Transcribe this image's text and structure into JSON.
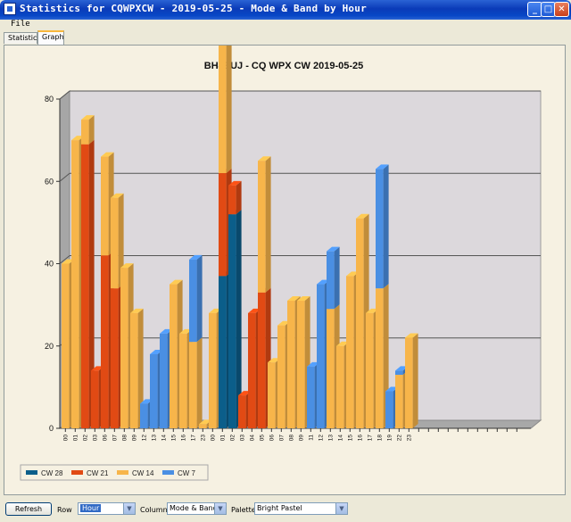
{
  "window": {
    "title": "Statistics for CQWPXCW - 2019-05-25 - Mode & Band by Hour"
  },
  "menu": {
    "file": "File"
  },
  "tabs": [
    {
      "label": "Statistics"
    },
    {
      "label": "Graph"
    }
  ],
  "controls": {
    "refresh_label": "Refresh",
    "row_label": "Row",
    "row_value": "Hour",
    "column_label": "Column",
    "column_value": "Mode & Band",
    "palette_label": "Palette",
    "palette_value": "Bright Pastel"
  },
  "colors": {
    "CW 28": "#0b5e8a",
    "CW 21": "#e14a14",
    "CW 14": "#f7b54a",
    "CW 7": "#4a8fe3"
  },
  "chart_data": {
    "type": "bar",
    "title": "BH4EUJ - CQ WPX  CW 2019-05-25",
    "categories": [
      "00",
      "01",
      "02",
      "03",
      "06",
      "07",
      "08",
      "09",
      "12",
      "13",
      "14",
      "15",
      "16",
      "17",
      "23",
      "00",
      "01",
      "02",
      "03",
      "04",
      "05",
      "06",
      "07",
      "08",
      "09",
      "11",
      "12",
      "13",
      "14",
      "15",
      "16",
      "17",
      "18",
      "19",
      "22",
      "23"
    ],
    "series": [
      {
        "name": "CW 28",
        "values": [
          0,
          0,
          0,
          0,
          0,
          0,
          0,
          0,
          0,
          0,
          0,
          0,
          0,
          0,
          0,
          0,
          37,
          52,
          0,
          0,
          0,
          0,
          0,
          0,
          0,
          0,
          0,
          0,
          0,
          0,
          0,
          0,
          0,
          0,
          0,
          0
        ]
      },
      {
        "name": "CW 21",
        "values": [
          0,
          0,
          69,
          14,
          42,
          34,
          0,
          0,
          0,
          0,
          0,
          0,
          0,
          0,
          0,
          0,
          25,
          7,
          8,
          28,
          33,
          0,
          0,
          0,
          0,
          0,
          0,
          0,
          0,
          0,
          0,
          0,
          0,
          0,
          0,
          0
        ]
      },
      {
        "name": "CW 14",
        "values": [
          40,
          70,
          6,
          0,
          24,
          22,
          39,
          28,
          0,
          0,
          0,
          35,
          23,
          21,
          1,
          28,
          34,
          0,
          0,
          0,
          32,
          16,
          25,
          31,
          31,
          0,
          0,
          29,
          20,
          37,
          51,
          28,
          34,
          0,
          13,
          22
        ]
      },
      {
        "name": "CW 7",
        "values": [
          0,
          0,
          0,
          0,
          0,
          0,
          0,
          0,
          6,
          18,
          23,
          0,
          0,
          20,
          0,
          0,
          0,
          0,
          0,
          0,
          0,
          0,
          0,
          0,
          0,
          15,
          35,
          14,
          0,
          0,
          0,
          0,
          29,
          9,
          1,
          0
        ]
      }
    ],
    "ylim": [
      0,
      80
    ],
    "yticks": [
      0,
      20,
      40,
      60,
      80
    ],
    "grid": true,
    "legend_position": "bottom-left"
  }
}
